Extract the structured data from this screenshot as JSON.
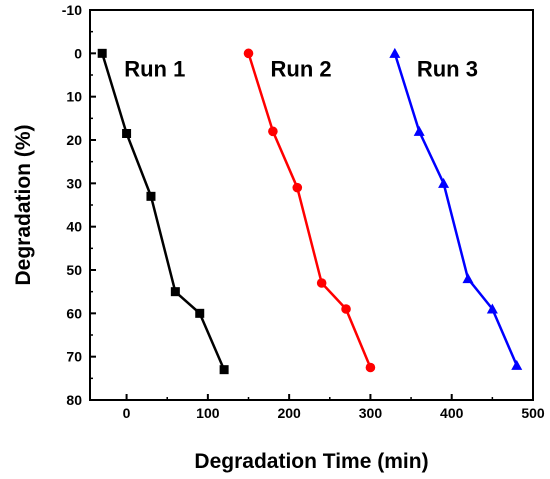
{
  "chart_data": {
    "type": "line",
    "xlabel": "Degradation Time (min)",
    "ylabel": "Degradation (%)",
    "xlim": [
      -45,
      500
    ],
    "ylim": [
      -10,
      80
    ],
    "y_inverted": true,
    "xticks": [
      0,
      100,
      200,
      300,
      400,
      500
    ],
    "yticks": [
      -10,
      0,
      10,
      20,
      30,
      40,
      50,
      60,
      70,
      80
    ],
    "grid": false,
    "series": [
      {
        "name": "Run 1",
        "color": "#000000",
        "marker": "square",
        "x": [
          -30,
          0,
          30,
          60,
          90,
          120
        ],
        "y": [
          0,
          18.5,
          33,
          55,
          60,
          73
        ]
      },
      {
        "name": "Run 2",
        "color": "#ff0000",
        "marker": "circle",
        "x": [
          150,
          180,
          210,
          240,
          270,
          300
        ],
        "y": [
          0,
          18,
          31,
          53,
          59,
          72.5
        ]
      },
      {
        "name": "Run 3",
        "color": "#0000ff",
        "marker": "triangle",
        "x": [
          330,
          360,
          390,
          420,
          450,
          480
        ],
        "y": [
          0,
          18,
          30,
          52,
          59,
          72
        ]
      }
    ]
  }
}
